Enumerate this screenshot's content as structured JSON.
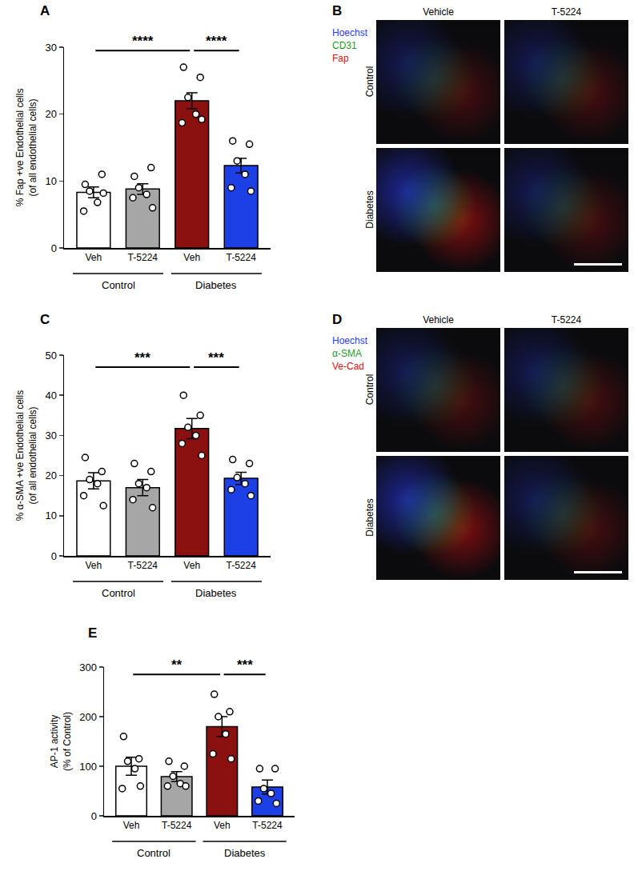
{
  "chart_data": [
    {
      "type": "bar",
      "panel": "A",
      "y_label": [
        "% Fap +ve Endothelial cells",
        "(of all endothelial cells)"
      ],
      "categories": [
        "Veh",
        "T-5224",
        "Veh",
        "T-5224"
      ],
      "group_labels": [
        "Control",
        "Control",
        "Diabetes",
        "Diabetes"
      ],
      "values": [
        8.3,
        8.8,
        22.0,
        12.3
      ],
      "errors": [
        0.8,
        0.8,
        1.2,
        1.1
      ],
      "points": [
        [
          9.5,
          11.0,
          8.5,
          6.8,
          5.5,
          8.2
        ],
        [
          10.7,
          12.0,
          9.0,
          8.0,
          7.5,
          6.0
        ],
        [
          27.0,
          25.5,
          22.5,
          20.0,
          18.7,
          19.2
        ],
        [
          16.0,
          15.5,
          13.0,
          11.0,
          9.0,
          8.5
        ]
      ],
      "colors": [
        "#ffffff",
        "#a6a6a6",
        "#8b1010",
        "#1c3fe6"
      ],
      "ylim": [
        0,
        30
      ],
      "yticks": [
        0,
        10,
        20,
        30
      ],
      "grid": false,
      "comparisons": [
        {
          "from": 0,
          "to": 2,
          "y": 29.5,
          "label": "****"
        },
        {
          "from": 2,
          "to": 3,
          "y": 29.5,
          "label": "****"
        }
      ]
    },
    {
      "type": "bar",
      "panel": "C",
      "y_label": [
        "% α-SMA +ve Endothelial cells",
        "(of all endothelial cells)"
      ],
      "categories": [
        "Veh",
        "T-5224",
        "Veh",
        "T-5224"
      ],
      "group_labels": [
        "Control",
        "Control",
        "Diabetes",
        "Diabetes"
      ],
      "values": [
        18.7,
        17.0,
        31.7,
        19.3
      ],
      "errors": [
        2.0,
        2.0,
        2.5,
        1.5
      ],
      "points": [
        [
          24.5,
          21.0,
          19.0,
          18.0,
          15.0,
          12.5
        ],
        [
          23.0,
          21.0,
          18.0,
          17.0,
          14.0,
          12.0
        ],
        [
          40.0,
          35.0,
          32.0,
          30.0,
          28.0,
          25.0
        ],
        [
          24.0,
          23.0,
          19.5,
          18.0,
          16.5,
          15.0
        ]
      ],
      "colors": [
        "#ffffff",
        "#a6a6a6",
        "#8b1010",
        "#1c3fe6"
      ],
      "ylim": [
        0,
        50
      ],
      "yticks": [
        0,
        10,
        20,
        30,
        40,
        50
      ],
      "grid": false,
      "comparisons": [
        {
          "from": 0,
          "to": 2,
          "y": 47,
          "label": "***"
        },
        {
          "from": 2,
          "to": 3,
          "y": 47,
          "label": "***"
        }
      ]
    },
    {
      "type": "bar",
      "panel": "E",
      "y_label": [
        "AP-1 activity",
        "(% of Control)"
      ],
      "categories": [
        "Veh",
        "T-5224",
        "Veh",
        "T-5224"
      ],
      "group_labels": [
        "Control",
        "Control",
        "Diabetes",
        "Diabetes"
      ],
      "values": [
        100,
        79,
        180,
        58
      ],
      "errors": [
        18,
        10,
        20,
        14
      ],
      "points": [
        [
          160,
          115,
          110,
          95,
          55,
          60
        ],
        [
          110,
          100,
          80,
          65,
          60,
          60
        ],
        [
          245,
          210,
          200,
          165,
          125,
          115
        ],
        [
          95,
          95,
          55,
          45,
          30,
          25
        ]
      ],
      "colors": [
        "#ffffff",
        "#a6a6a6",
        "#8b1010",
        "#1c3fe6"
      ],
      "ylim": [
        0,
        300
      ],
      "yticks": [
        0,
        100,
        200,
        300
      ],
      "grid": false,
      "comparisons": [
        {
          "from": 0,
          "to": 2,
          "y": 285,
          "label": "**"
        },
        {
          "from": 2,
          "to": 3,
          "y": 285,
          "label": "***"
        }
      ]
    }
  ],
  "images": [
    {
      "panel": "B",
      "columns": [
        "Vehicle",
        "T-5224"
      ],
      "rows": [
        "Control",
        "Diabetes"
      ],
      "stains": [
        {
          "name": "Hoechst",
          "color": "#2b3bff"
        },
        {
          "name": "CD31",
          "color": "#1f9a2a"
        },
        {
          "name": "Fap",
          "color": "#e01010"
        }
      ]
    },
    {
      "panel": "D",
      "columns": [
        "Vehicle",
        "T-5224"
      ],
      "rows": [
        "Control",
        "Diabetes"
      ],
      "stains": [
        {
          "name": "Hoechst",
          "color": "#2b3bff"
        },
        {
          "name": "α-SMA",
          "color": "#1f9a2a"
        },
        {
          "name": "Ve-Cad",
          "color": "#e01010"
        }
      ]
    }
  ]
}
